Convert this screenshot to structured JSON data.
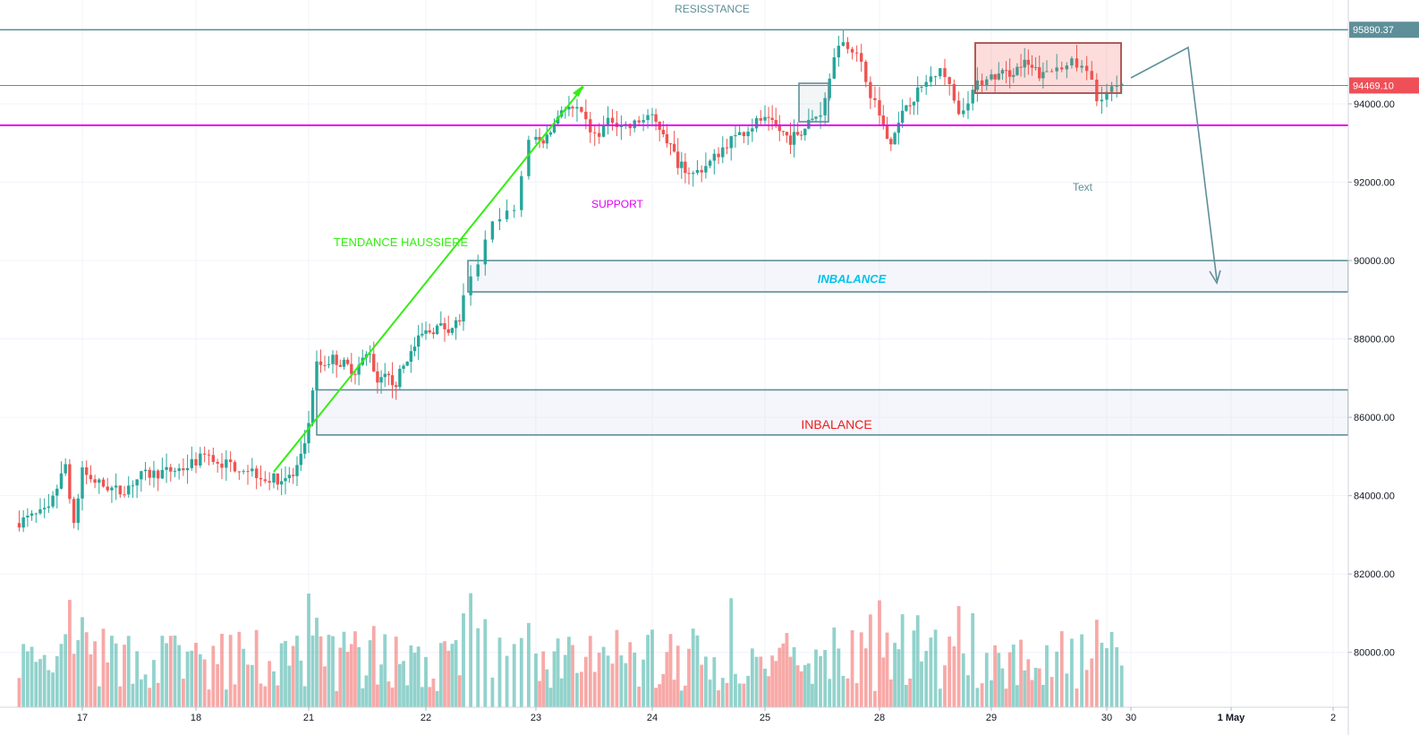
{
  "chart_data": {
    "type": "candlestick",
    "y_axis": {
      "ylim": [
        78600,
        96650
      ],
      "ticks": [
        80000,
        82000,
        84000,
        86000,
        88000,
        90000,
        92000,
        94000
      ],
      "tick_labels": [
        "80000.00",
        "82000.00",
        "84000.00",
        "86000.00",
        "88000.00",
        "90000.00",
        "92000.00",
        "94000.00"
      ]
    },
    "x_axis": {
      "labels": [
        "17",
        "18",
        "21",
        "22",
        "23",
        "24",
        "25",
        "28",
        "29",
        "30",
        "30",
        "1 May",
        "2"
      ]
    },
    "price_badges": [
      {
        "value": 95890.37,
        "label": "95890.37",
        "color": "#5e8f99"
      },
      {
        "value": 94469.1,
        "label": "94469.10",
        "color": "#ef4f57"
      }
    ],
    "levels": [
      {
        "value": 95890.37,
        "color": "#5e8f99"
      },
      {
        "value": 94469.1,
        "color": "#ef4f57"
      },
      {
        "value": 93450,
        "color": "#e100f5"
      }
    ],
    "zones": [
      {
        "from": 89200,
        "to": 90000,
        "label": "INBALANCE",
        "label_color": "#00c4ee",
        "italic": true
      },
      {
        "from": 85550,
        "to": 86700,
        "label": "INBALANCE",
        "label_color": "#ee1c1c",
        "italic": false
      }
    ],
    "annotations": [
      {
        "text": "RESISSTANCE",
        "color": "#5e8f99"
      },
      {
        "text": "SUPPORT",
        "color": "#e100f5"
      },
      {
        "text": "TENDANCE HAUSSIERE",
        "color": "#33ee11"
      },
      {
        "text": "Text",
        "color": "#5e8f99"
      }
    ],
    "anchors": [
      {
        "label": "17",
        "index": 15
      },
      {
        "label": "18",
        "index": 42
      },
      {
        "label": "20b",
        "index": 60
      },
      {
        "label": "21",
        "index": 69
      },
      {
        "label": "21b",
        "index": 75
      },
      {
        "label": "22",
        "index": 100
      },
      {
        "label": "22b",
        "index": 110
      },
      {
        "label": "23",
        "index": 120
      },
      {
        "label": "23b",
        "index": 130
      },
      {
        "label": "24",
        "index": 148
      },
      {
        "label": "24b",
        "index": 158
      },
      {
        "label": "25",
        "index": 176
      },
      {
        "label": "25b",
        "index": 190
      },
      {
        "label": "28",
        "index": 204
      },
      {
        "label": "28b",
        "index": 215
      },
      {
        "label": "29",
        "index": 230
      },
      {
        "label": "29b",
        "index": 245
      },
      {
        "label": "30",
        "index": 257
      }
    ],
    "price_path": [
      [
        0,
        83300
      ],
      [
        8,
        83600
      ],
      [
        12,
        84800
      ],
      [
        14,
        83300
      ],
      [
        16,
        84600
      ],
      [
        20,
        84300
      ],
      [
        25,
        84100
      ],
      [
        30,
        84500
      ],
      [
        35,
        84600
      ],
      [
        40,
        84700
      ],
      [
        45,
        85000
      ],
      [
        50,
        84800
      ],
      [
        55,
        84700
      ],
      [
        60,
        84400
      ],
      [
        66,
        84500
      ],
      [
        69,
        85200
      ],
      [
        72,
        87300
      ],
      [
        76,
        87500
      ],
      [
        82,
        87200
      ],
      [
        86,
        87700
      ],
      [
        88,
        86800
      ],
      [
        90,
        87000
      ],
      [
        93,
        86900
      ],
      [
        96,
        87500
      ],
      [
        100,
        88100
      ],
      [
        104,
        88300
      ],
      [
        108,
        88300
      ],
      [
        110,
        88500
      ],
      [
        112,
        89500
      ],
      [
        115,
        90900
      ],
      [
        118,
        91300
      ],
      [
        120,
        93000
      ],
      [
        124,
        93100
      ],
      [
        128,
        93900
      ],
      [
        132,
        93800
      ],
      [
        136,
        93200
      ],
      [
        140,
        93600
      ],
      [
        144,
        93400
      ],
      [
        148,
        93700
      ],
      [
        152,
        93300
      ],
      [
        156,
        92500
      ],
      [
        160,
        92200
      ],
      [
        164,
        92500
      ],
      [
        168,
        93000
      ],
      [
        172,
        93300
      ],
      [
        176,
        93600
      ],
      [
        180,
        93400
      ],
      [
        184,
        93100
      ],
      [
        188,
        93400
      ],
      [
        192,
        93800
      ],
      [
        196,
        95600
      ],
      [
        200,
        95400
      ],
      [
        202,
        94500
      ],
      [
        204,
        94000
      ],
      [
        208,
        93000
      ],
      [
        212,
        94000
      ],
      [
        216,
        94400
      ],
      [
        220,
        95000
      ],
      [
        224,
        93800
      ],
      [
        228,
        94500
      ],
      [
        232,
        94700
      ],
      [
        236,
        94800
      ],
      [
        240,
        95000
      ],
      [
        245,
        94700
      ],
      [
        250,
        95100
      ],
      [
        254,
        94800
      ],
      [
        256,
        94200
      ],
      [
        258,
        94300
      ],
      [
        260,
        94400
      ]
    ],
    "volume_max": 83000
  }
}
